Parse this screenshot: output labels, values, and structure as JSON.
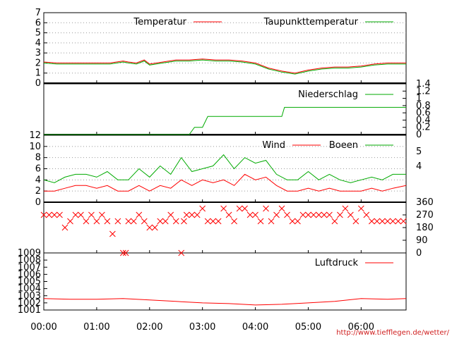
{
  "chart_data": [
    {
      "type": "line",
      "panel": "temperature",
      "ylim": [
        0,
        7
      ],
      "y_ticks": [
        "0",
        "1",
        "2",
        "3",
        "4",
        "5",
        "6",
        "7"
      ],
      "grid": true,
      "legend_placement": "top-right",
      "x_hours": [
        0,
        0.25,
        0.5,
        0.75,
        1,
        1.25,
        1.5,
        1.6,
        1.75,
        1.9,
        2,
        2.25,
        2.5,
        2.75,
        3,
        3.25,
        3.5,
        3.75,
        4,
        4.25,
        4.5,
        4.75,
        5,
        5.25,
        5.5,
        5.75,
        6,
        6.25,
        6.5,
        6.85
      ],
      "series": [
        {
          "name": "Temperatur",
          "color": "#ff0000",
          "values": [
            2.1,
            2.0,
            2.0,
            2.0,
            2.0,
            2.0,
            2.2,
            2.1,
            2.0,
            2.3,
            1.9,
            2.1,
            2.3,
            2.3,
            2.4,
            2.3,
            2.3,
            2.2,
            2.0,
            1.5,
            1.2,
            1.0,
            1.3,
            1.5,
            1.6,
            1.6,
            1.7,
            1.9,
            2.0,
            2.0
          ]
        },
        {
          "name": "Taupunkttemperatur",
          "color": "#00aa00",
          "values": [
            2.0,
            1.9,
            1.9,
            1.9,
            1.9,
            1.9,
            2.1,
            2.0,
            1.9,
            2.2,
            1.8,
            2.0,
            2.2,
            2.2,
            2.3,
            2.2,
            2.2,
            2.1,
            1.9,
            1.4,
            1.1,
            0.9,
            1.2,
            1.4,
            1.5,
            1.5,
            1.6,
            1.8,
            1.9,
            1.9
          ]
        }
      ]
    },
    {
      "type": "line",
      "panel": "precipitation",
      "ylim": [
        0,
        1.4
      ],
      "y_ticks": [
        "0",
        "0.2",
        "0.4",
        "0.6",
        "0.8",
        "1",
        "1.2",
        "1.4"
      ],
      "legend_placement": "top-right",
      "x_hours": [
        0,
        2.75,
        2.85,
        3.0,
        3.1,
        4.5,
        4.55,
        6.85
      ],
      "series": [
        {
          "name": "Niederschlag",
          "color": "#00aa00",
          "values": [
            0,
            0,
            0.2,
            0.2,
            0.5,
            0.5,
            0.75,
            0.75
          ]
        }
      ]
    },
    {
      "type": "line",
      "panel": "wind",
      "ylim": [
        0,
        12
      ],
      "y_ticks": [
        "0",
        "2",
        "4",
        "6",
        "8",
        "10",
        "12"
      ],
      "right_ticks": [
        "4",
        "5"
      ],
      "grid": true,
      "legend_placement": "top-right",
      "x_hours": [
        0,
        0.2,
        0.4,
        0.6,
        0.8,
        1,
        1.2,
        1.4,
        1.6,
        1.8,
        2,
        2.2,
        2.4,
        2.6,
        2.8,
        3,
        3.2,
        3.4,
        3.6,
        3.8,
        4,
        4.2,
        4.4,
        4.6,
        4.8,
        5,
        5.2,
        5.4,
        5.6,
        5.8,
        6,
        6.2,
        6.4,
        6.6,
        6.85
      ],
      "series": [
        {
          "name": "Wind",
          "color": "#ff0000",
          "values": [
            2,
            2,
            2.5,
            3,
            3,
            2.5,
            3,
            2,
            2,
            3,
            2,
            3,
            2.5,
            4,
            3,
            4,
            3.5,
            4,
            3,
            5,
            4,
            4.5,
            3,
            2,
            2,
            2.5,
            2,
            2.5,
            2,
            2,
            2,
            2.5,
            2,
            2.5,
            3
          ]
        },
        {
          "name": "Boeen",
          "color": "#00aa00",
          "values": [
            4,
            3.5,
            4.5,
            5,
            5,
            4.5,
            5.5,
            4,
            4,
            6,
            4.5,
            6.5,
            5,
            8,
            5.5,
            6,
            6.5,
            8.5,
            6,
            8,
            7,
            7.5,
            5,
            4,
            4,
            5.5,
            4,
            5,
            4,
            3.5,
            4,
            4.5,
            4,
            5,
            5
          ]
        }
      ]
    },
    {
      "type": "scatter",
      "panel": "wind_direction",
      "ylim": [
        0,
        360
      ],
      "y_ticks": [
        "0",
        "90",
        "180",
        "270",
        "360"
      ],
      "marker": "x",
      "color": "#ff0000",
      "x_hours": [
        0,
        0.1,
        0.2,
        0.3,
        0.4,
        0.5,
        0.6,
        0.7,
        0.8,
        0.9,
        1,
        1.1,
        1.2,
        1.3,
        1.4,
        1.5,
        1.55,
        1.6,
        1.7,
        1.8,
        1.9,
        2,
        2.1,
        2.2,
        2.3,
        2.4,
        2.5,
        2.6,
        2.65,
        2.7,
        2.8,
        2.9,
        3,
        3.1,
        3.2,
        3.3,
        3.4,
        3.5,
        3.6,
        3.7,
        3.8,
        3.9,
        4,
        4.1,
        4.2,
        4.3,
        4.4,
        4.5,
        4.6,
        4.7,
        4.8,
        4.9,
        5,
        5.1,
        5.2,
        5.3,
        5.4,
        5.5,
        5.6,
        5.7,
        5.8,
        5.9,
        6,
        6.1,
        6.2,
        6.3,
        6.4,
        6.5,
        6.6,
        6.7,
        6.8
      ],
      "values": [
        270,
        270,
        270,
        270,
        180,
        225,
        270,
        270,
        225,
        270,
        225,
        270,
        225,
        135,
        225,
        0,
        0,
        225,
        225,
        270,
        225,
        180,
        180,
        225,
        225,
        270,
        225,
        0,
        225,
        270,
        270,
        270,
        315,
        225,
        225,
        225,
        315,
        270,
        225,
        315,
        315,
        270,
        270,
        225,
        315,
        225,
        270,
        315,
        270,
        225,
        225,
        270,
        270,
        270,
        270,
        270,
        270,
        225,
        270,
        315,
        270,
        225,
        315,
        270,
        225,
        225,
        225,
        225,
        225,
        225,
        225
      ]
    },
    {
      "type": "line",
      "panel": "pressure",
      "ylim": [
        1001,
        1009
      ],
      "y_ticks": [
        "1001",
        "1002",
        "1003",
        "1004",
        "1005",
        "1006",
        "1007",
        "1008",
        "1009"
      ],
      "legend_placement": "top-right",
      "x_hours": [
        0,
        0.5,
        1,
        1.5,
        2,
        2.5,
        3,
        3.5,
        4,
        4.5,
        5,
        5.5,
        6,
        6.5,
        6.85
      ],
      "series": [
        {
          "name": "Luftdruck",
          "color": "#ff0000",
          "values": [
            1002.6,
            1002.5,
            1002.5,
            1002.6,
            1002.4,
            1002.2,
            1002.0,
            1001.9,
            1001.7,
            1001.8,
            1002.0,
            1002.2,
            1002.6,
            1002.5,
            1002.6
          ]
        }
      ]
    }
  ],
  "x_axis": {
    "ticks": [
      "00:00",
      "01:00",
      "02:00",
      "03:00",
      "04:00",
      "05:00",
      "06:00"
    ],
    "range_hours": [
      0,
      6.85
    ]
  },
  "footer": {
    "url": "http://www.tiefflegen.de/wetter/"
  }
}
